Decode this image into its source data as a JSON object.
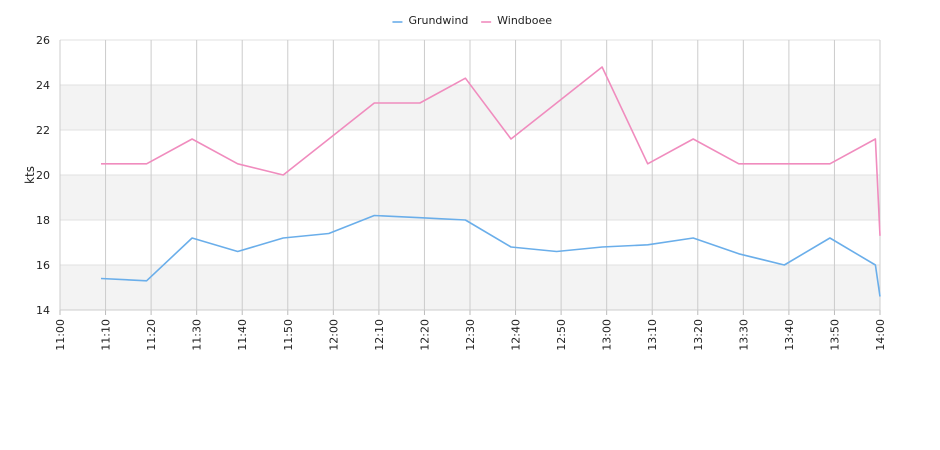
{
  "chart_data": {
    "type": "line",
    "ylabel": "kts",
    "xlabel": "",
    "title": "",
    "ylim": [
      14,
      26
    ],
    "y_ticks": [
      14,
      16,
      18,
      20,
      22,
      24,
      26
    ],
    "x_range": [
      "11:00",
      "14:00"
    ],
    "x_ticks": [
      "11:00",
      "11:10",
      "11:20",
      "11:30",
      "11:40",
      "11:50",
      "12:00",
      "12:10",
      "12:20",
      "12:30",
      "12:40",
      "12:50",
      "13:00",
      "13:10",
      "13:20",
      "13:30",
      "13:40",
      "13:50",
      "14:00"
    ],
    "grid": true,
    "legend_position": "top-center",
    "series": [
      {
        "name": "Grundwind",
        "color": "#6aaeea",
        "x": [
          "11:09",
          "11:19",
          "11:29",
          "11:39",
          "11:49",
          "11:59",
          "12:09",
          "12:19",
          "12:29",
          "12:39",
          "12:49",
          "12:59",
          "13:09",
          "13:19",
          "13:29",
          "13:39",
          "13:49",
          "13:59",
          "14:00"
        ],
        "values": [
          15.4,
          15.3,
          17.2,
          16.6,
          17.2,
          17.4,
          18.2,
          18.1,
          18.0,
          16.8,
          16.6,
          16.8,
          16.9,
          17.2,
          16.5,
          16.0,
          17.2,
          16.0,
          14.6
        ]
      },
      {
        "name": "Windboee",
        "color": "#f08cbe",
        "x": [
          "11:09",
          "11:19",
          "11:29",
          "11:39",
          "11:49",
          "11:59",
          "12:09",
          "12:19",
          "12:29",
          "12:39",
          "12:49",
          "12:59",
          "13:09",
          "13:19",
          "13:29",
          "13:39",
          "13:49",
          "13:59",
          "14:00"
        ],
        "values": [
          20.5,
          20.5,
          21.6,
          20.5,
          20.0,
          21.6,
          23.2,
          23.2,
          24.3,
          21.6,
          23.2,
          24.8,
          20.5,
          21.6,
          20.5,
          20.5,
          20.5,
          21.6,
          17.3
        ]
      }
    ]
  }
}
